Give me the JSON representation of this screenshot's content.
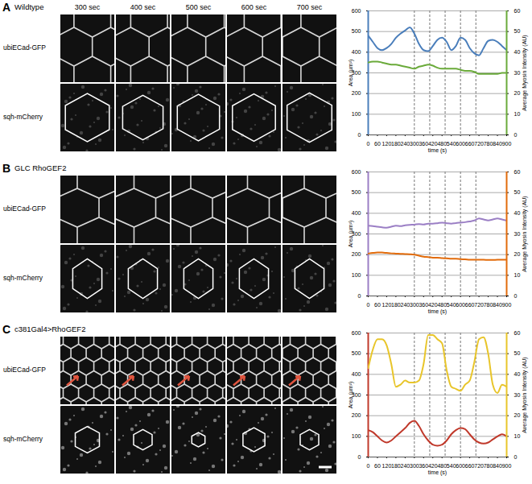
{
  "figure": {
    "panels": [
      {
        "letter": "A",
        "title": "Wildtype",
        "times": [
          "300 sec",
          "400 sec",
          "500 sec",
          "600 sec",
          "700 sec"
        ],
        "rows": [
          "ubiECad-GFP",
          "sqh-mCherry"
        ]
      },
      {
        "letter": "B",
        "title": "GLC RhoGEF2",
        "rows": [
          "ubiECad-GFP",
          "sqh-mCherry"
        ]
      },
      {
        "letter": "C",
        "title": "c381Gal4>RhoGEF2",
        "rows": [
          "ubiECad-GFP",
          "sqh-mCherry"
        ]
      }
    ]
  },
  "chart_data": [
    {
      "type": "line",
      "xlabel": "time (s)",
      "ylabel": "Area (µm²)",
      "y2label": "Average Myosin Intensity (AU)",
      "x": [
        0,
        30,
        60,
        90,
        120,
        150,
        180,
        210,
        240,
        270,
        300,
        330,
        360,
        390,
        420,
        450,
        480,
        510,
        540,
        570,
        600,
        630,
        660,
        690,
        720,
        750,
        780,
        810,
        840,
        870,
        900
      ],
      "xlim": [
        0,
        900
      ],
      "xticks": [
        0,
        60,
        120,
        180,
        240,
        300,
        360,
        420,
        480,
        540,
        600,
        660,
        720,
        780,
        840,
        900
      ],
      "ylim": [
        0,
        600
      ],
      "yticks": [
        0,
        100,
        200,
        300,
        400,
        500,
        600
      ],
      "y2lim": [
        0,
        60
      ],
      "y2ticks": [
        0,
        10,
        20,
        30,
        40,
        50,
        60
      ],
      "grid": true,
      "frame_times": [
        300,
        400,
        500,
        600,
        700
      ],
      "series": [
        {
          "color": "#4a7ebb",
          "values": [
            480,
            450,
            420,
            410,
            420,
            440,
            470,
            490,
            505,
            520,
            490,
            440,
            410,
            405,
            430,
            460,
            470,
            450,
            410,
            430,
            470,
            460,
            420,
            395,
            385,
            420,
            455,
            460,
            450,
            430,
            410
          ]
        },
        {
          "color": "#6aaa3a",
          "axis": "y2",
          "values": [
            35,
            35.5,
            35.5,
            35,
            34.5,
            34,
            34,
            33.5,
            33,
            32.5,
            32,
            33,
            33.5,
            34,
            33.5,
            32.5,
            32,
            32,
            32,
            32,
            31.5,
            31,
            31,
            30.5,
            29.5,
            29.5,
            29.5,
            29.5,
            29.5,
            30,
            30
          ]
        }
      ]
    },
    {
      "type": "line",
      "xlabel": "time (s)",
      "ylabel": "Area (µm²)",
      "y2label": "Average Myosin Intensity (AU)",
      "x": [
        0,
        30,
        60,
        90,
        120,
        150,
        180,
        210,
        240,
        270,
        300,
        330,
        360,
        390,
        420,
        450,
        480,
        510,
        540,
        570,
        600,
        630,
        660,
        690,
        720,
        750,
        780,
        810,
        840,
        870,
        900
      ],
      "xlim": [
        0,
        900
      ],
      "xticks": [
        0,
        60,
        120,
        180,
        240,
        300,
        360,
        420,
        480,
        540,
        600,
        660,
        720,
        780,
        840,
        900
      ],
      "ylim": [
        0,
        600
      ],
      "yticks": [
        0,
        100,
        200,
        300,
        400,
        500,
        600
      ],
      "y2lim": [
        0,
        60
      ],
      "y2ticks": [
        0,
        10,
        20,
        30,
        40,
        50,
        60
      ],
      "grid": true,
      "frame_times": [
        300,
        400,
        500,
        600,
        700
      ],
      "series": [
        {
          "color": "#9b7fc5",
          "values": [
            340,
            338,
            335,
            332,
            330,
            335,
            340,
            338,
            342,
            344,
            345,
            348,
            346,
            350,
            350,
            352,
            355,
            352,
            350,
            353,
            355,
            357,
            360,
            365,
            375,
            370,
            365,
            370,
            375,
            370,
            365
          ]
        },
        {
          "color": "#e26b0a",
          "axis": "y2",
          "values": [
            20.5,
            20.8,
            21,
            21,
            20.8,
            20.6,
            20.5,
            20.4,
            20.3,
            20.2,
            20,
            19.5,
            19,
            18.8,
            18.5,
            18.5,
            18.3,
            18.2,
            18,
            18,
            17.8,
            17.7,
            17.5,
            17.5,
            17.5,
            17.5,
            17.4,
            17.4,
            17.5,
            17.5,
            17.5
          ]
        }
      ]
    },
    {
      "type": "line",
      "xlabel": "time (s)",
      "ylabel": "Area (µm²)",
      "y2label": "Average Myosin Intensity (AU)",
      "x": [
        0,
        30,
        60,
        90,
        120,
        150,
        180,
        210,
        240,
        270,
        300,
        330,
        360,
        390,
        420,
        450,
        480,
        510,
        540,
        570,
        600,
        630,
        660,
        690,
        720,
        750,
        780,
        810,
        840,
        870,
        900
      ],
      "xlim": [
        0,
        900
      ],
      "xticks": [
        0,
        60,
        120,
        180,
        240,
        300,
        360,
        420,
        480,
        540,
        600,
        660,
        720,
        780,
        840,
        900
      ],
      "ylim": [
        0,
        600
      ],
      "yticks": [
        0,
        100,
        200,
        300,
        400,
        500,
        600
      ],
      "y2lim": [
        0,
        60
      ],
      "y2ticks": [
        0,
        10,
        20,
        30,
        40,
        50,
        60
      ],
      "grid": true,
      "frame_times": [
        300,
        400,
        500,
        600,
        700
      ],
      "series": [
        {
          "color": "#c0392b",
          "values": [
            130,
            120,
            100,
            80,
            70,
            80,
            100,
            120,
            140,
            165,
            175,
            150,
            110,
            80,
            60,
            55,
            60,
            80,
            110,
            130,
            140,
            135,
            110,
            85,
            70,
            65,
            70,
            85,
            100,
            110,
            100
          ]
        },
        {
          "color": "#e8c52a",
          "axis": "y2",
          "values": [
            43,
            52,
            57,
            57,
            54,
            45,
            34,
            35,
            37,
            36,
            36,
            37,
            45,
            59,
            59,
            57,
            55,
            42,
            34,
            33,
            32,
            35,
            37,
            46,
            57,
            58,
            50,
            35,
            31,
            35,
            34
          ]
        }
      ]
    }
  ]
}
